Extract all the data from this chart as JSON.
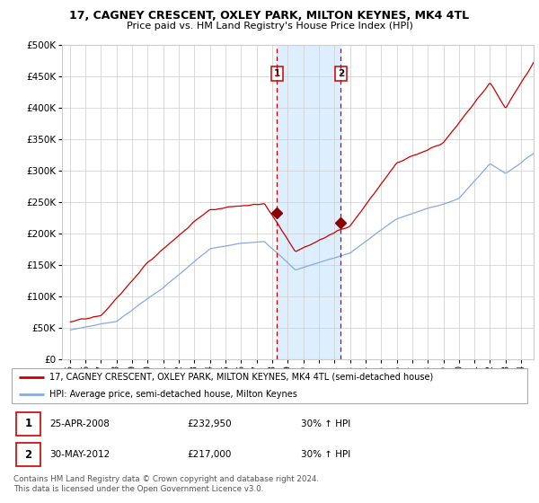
{
  "title": "17, CAGNEY CRESCENT, OXLEY PARK, MILTON KEYNES, MK4 4TL",
  "subtitle": "Price paid vs. HM Land Registry's House Price Index (HPI)",
  "legend_property": "17, CAGNEY CRESCENT, OXLEY PARK, MILTON KEYNES, MK4 4TL (semi-detached house)",
  "legend_hpi": "HPI: Average price, semi-detached house, Milton Keynes",
  "annotation1_label": "1",
  "annotation1_date": "25-APR-2008",
  "annotation1_price": "£232,950",
  "annotation1_hpi": "30% ↑ HPI",
  "annotation2_label": "2",
  "annotation2_date": "30-MAY-2012",
  "annotation2_price": "£217,000",
  "annotation2_hpi": "30% ↑ HPI",
  "footer": "Contains HM Land Registry data © Crown copyright and database right 2024.\nThis data is licensed under the Open Government Licence v3.0.",
  "property_color": "#cc0000",
  "hpi_color": "#88aadd",
  "highlight_color": "#ddeeff",
  "vline_color": "#cc0000",
  "grid_color": "#cccccc",
  "background_color": "#ffffff",
  "sale1_year": 2008.32,
  "sale1_value": 232950,
  "sale2_year": 2012.42,
  "sale2_value": 217000,
  "ylim": [
    0,
    500000
  ],
  "yticks": [
    0,
    50000,
    100000,
    150000,
    200000,
    250000,
    300000,
    350000,
    400000,
    450000,
    500000
  ],
  "xstart": 1995,
  "xend": 2024
}
